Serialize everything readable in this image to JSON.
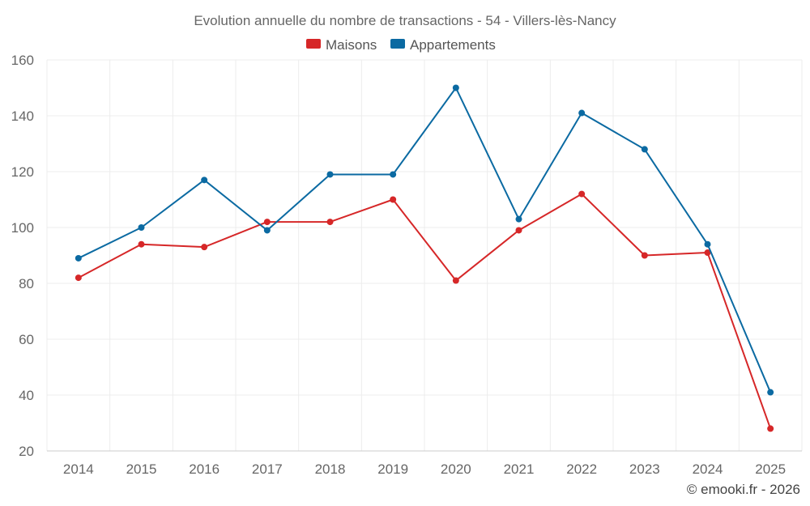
{
  "chart_data": {
    "type": "line",
    "title": "Evolution annuelle du nombre de transactions - 54 - Villers-lès-Nancy",
    "categories": [
      "2014",
      "2015",
      "2016",
      "2017",
      "2018",
      "2019",
      "2020",
      "2021",
      "2022",
      "2023",
      "2024",
      "2025"
    ],
    "series": [
      {
        "name": "Maisons",
        "color": "#d62728",
        "values": [
          82,
          94,
          93,
          102,
          102,
          110,
          81,
          99,
          112,
          90,
          91,
          28
        ]
      },
      {
        "name": "Appartements",
        "color": "#0b6aa2",
        "values": [
          89,
          100,
          117,
          99,
          119,
          119,
          150,
          103,
          141,
          128,
          94,
          41
        ]
      }
    ],
    "xlabel": "",
    "ylabel": "",
    "ylim": [
      20,
      160
    ],
    "yticks": [
      20,
      40,
      60,
      80,
      100,
      120,
      140,
      160
    ],
    "grid": true,
    "legend_position": "top-center"
  },
  "credit": "© emooki.fr - 2026"
}
